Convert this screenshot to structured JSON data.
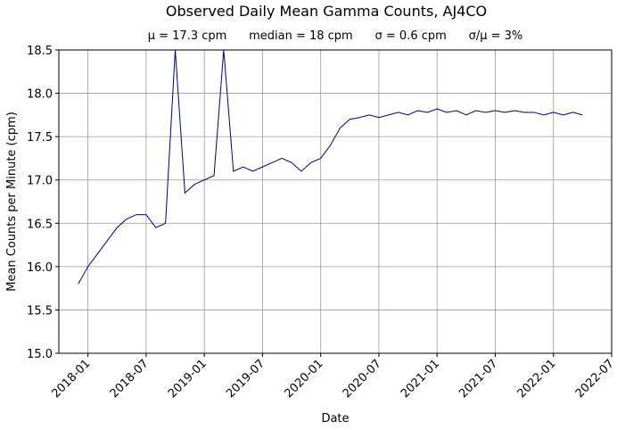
{
  "chart_data": {
    "type": "line",
    "title": "Observed Daily Mean Gamma Counts, AJ4CO",
    "subtitle": "μ = 17.3 cpm      median = 18 cpm      σ = 0.6 cpm      σ/μ = 3%",
    "x_label": "Date",
    "y_label": "Mean Counts per Minute (cpm)",
    "x": [
      "2017-12",
      "2018-01",
      "2018-02",
      "2018-03",
      "2018-04",
      "2018-05",
      "2018-06",
      "2018-07",
      "2018-08",
      "2018-09",
      "2018-10",
      "2018-11",
      "2018-12",
      "2019-01",
      "2019-02",
      "2019-03",
      "2019-04",
      "2019-05",
      "2019-06",
      "2019-07",
      "2019-08",
      "2019-09",
      "2019-10",
      "2019-11",
      "2019-12",
      "2020-01",
      "2020-02",
      "2020-03",
      "2020-04",
      "2020-05",
      "2020-06",
      "2020-07",
      "2020-08",
      "2020-09",
      "2020-10",
      "2020-11",
      "2020-12",
      "2021-01",
      "2021-02",
      "2021-03",
      "2021-04",
      "2021-05",
      "2021-06",
      "2021-07",
      "2021-08",
      "2021-09",
      "2021-10",
      "2021-11",
      "2021-12",
      "2022-01",
      "2022-02",
      "2022-03",
      "2022-04"
    ],
    "series": [
      {
        "name": "Daily mean",
        "color": "#000080",
        "values": [
          15.8,
          16.0,
          16.15,
          16.3,
          16.45,
          16.55,
          16.6,
          16.6,
          16.45,
          16.5,
          18.5,
          16.85,
          16.95,
          17.0,
          17.05,
          18.5,
          17.1,
          17.15,
          17.1,
          17.15,
          17.2,
          17.25,
          17.2,
          17.1,
          17.2,
          17.25,
          17.4,
          17.6,
          17.7,
          17.72,
          17.75,
          17.72,
          17.75,
          17.78,
          17.75,
          17.8,
          17.78,
          17.82,
          17.78,
          17.8,
          17.75,
          17.8,
          17.78,
          17.8,
          17.78,
          17.8,
          17.78,
          17.78,
          17.75,
          17.78,
          17.75,
          17.78,
          17.75
        ]
      }
    ],
    "xlim": [
      "2017-10",
      "2022-07"
    ],
    "xticks": [
      "2018-01",
      "2018-07",
      "2019-01",
      "2019-07",
      "2020-01",
      "2020-07",
      "2021-01",
      "2021-07",
      "2022-01",
      "2022-07"
    ],
    "ylim": [
      15,
      18.5
    ],
    "yticks": [
      {
        "value": 15,
        "label": "15.0"
      },
      {
        "value": 15.5,
        "label": "15.5"
      },
      {
        "value": 16,
        "label": "16.0"
      },
      {
        "value": 16.5,
        "label": "16.5"
      },
      {
        "value": 17,
        "label": "17.0"
      },
      {
        "value": 17.5,
        "label": "17.5"
      },
      {
        "value": 18,
        "label": "18.0"
      },
      {
        "value": 18.5,
        "label": "18.5"
      }
    ],
    "grid": true
  }
}
